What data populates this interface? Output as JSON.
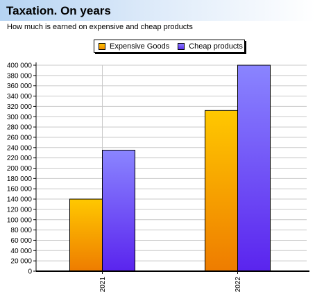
{
  "header": {
    "title": "Taxation. On years",
    "subtitle": "How much is earned on expensive and cheap products"
  },
  "legend": {
    "items": [
      {
        "label": "Expensive Goods",
        "color": "#f5a800"
      },
      {
        "label": "Cheap products",
        "color": "#7b5cf5"
      }
    ]
  },
  "chart_data": {
    "type": "bar",
    "title": "Taxation. On years",
    "subtitle": "How much is earned on expensive and cheap products",
    "xlabel": "",
    "ylabel": "",
    "categories": [
      "2021",
      "2022"
    ],
    "series": [
      {
        "name": "Expensive Goods",
        "values": [
          140000,
          312000
        ],
        "color": "#f5a800"
      },
      {
        "name": "Cheap products",
        "values": [
          235000,
          400000
        ],
        "color": "#7b5cf5"
      }
    ],
    "ylim": [
      0,
      400000
    ],
    "ytick_step": 20000,
    "ytick_labels": [
      "0",
      "20 000",
      "40 000",
      "60 000",
      "80 000",
      "100 000",
      "120 000",
      "140 000",
      "160 000",
      "180 000",
      "200 000",
      "220 000",
      "240 000",
      "260 000",
      "280 000",
      "300 000",
      "320 000",
      "340 000",
      "360 000",
      "380 000",
      "400 000"
    ],
    "grid": true,
    "legend_position": "top-center"
  }
}
